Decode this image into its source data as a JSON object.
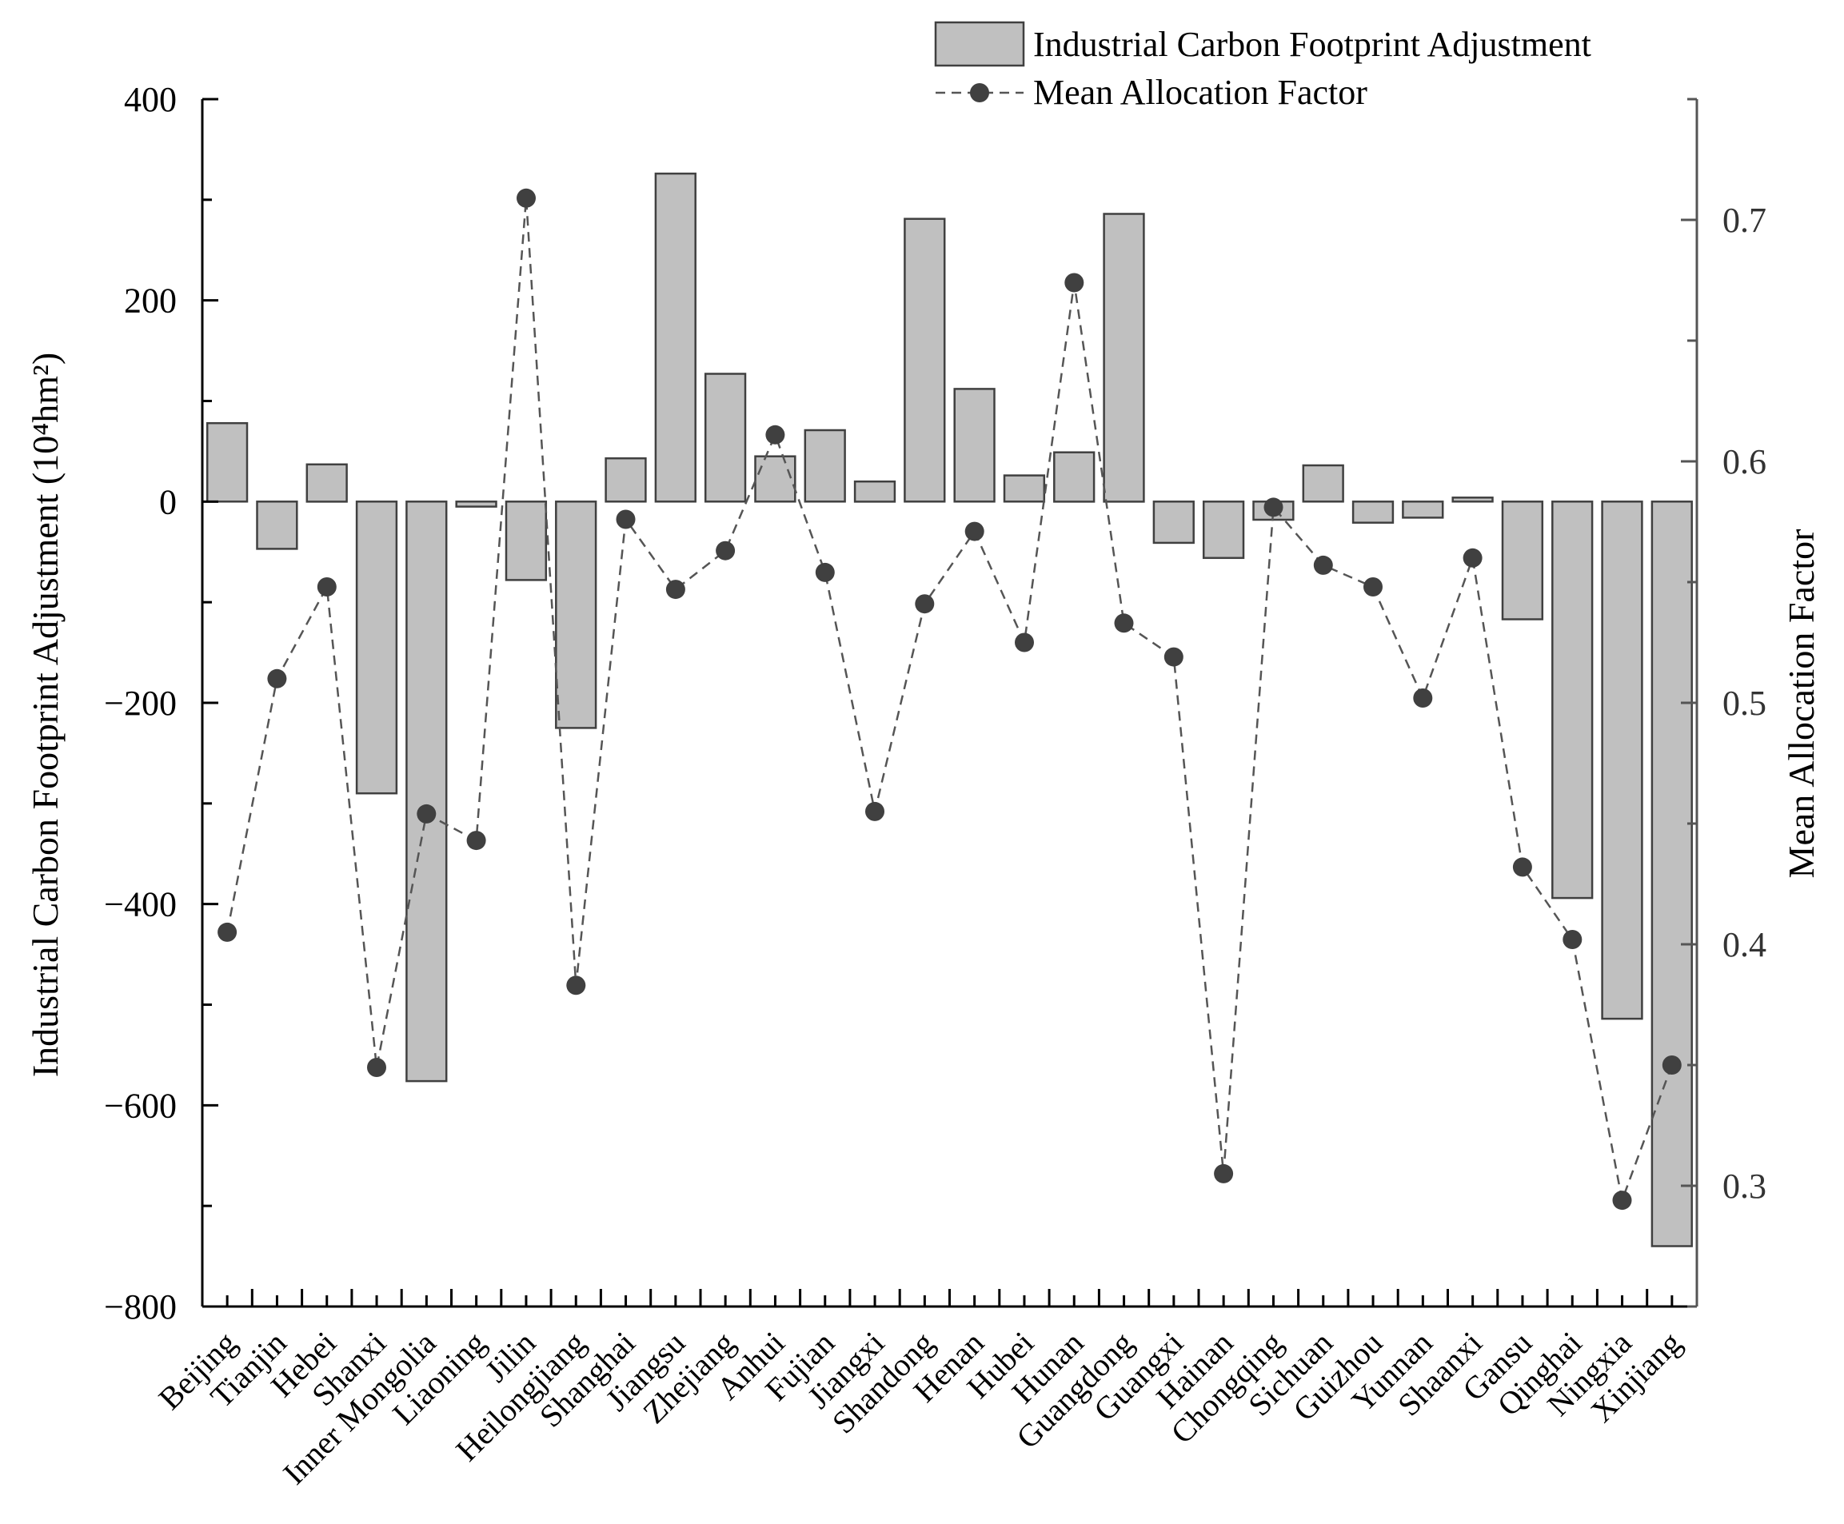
{
  "chart_data": {
    "type": "bar",
    "categories": [
      "Beijing",
      "Tianjin",
      "Hebei",
      "Shanxi",
      "Inner Mongolia",
      "Liaoning",
      "Jilin",
      "Heilongjiang",
      "Shanghai",
      "Jiangsu",
      "Zhejiang",
      "Anhui",
      "Fujian",
      "Jiangxi",
      "Shandong",
      "Henan",
      "Hubei",
      "Hunan",
      "Guangdong",
      "Guangxi",
      "Hainan",
      "Chongqing",
      "Sichuan",
      "Guizhou",
      "Yunnan",
      "Shaanxi",
      "Gansu",
      "Qinghai",
      "Ningxia",
      "Xinjiang"
    ],
    "series": [
      {
        "name": "Industrial Carbon Footprint Adjustment",
        "type": "bar",
        "axis": "left",
        "values": [
          78,
          -47,
          37,
          -290,
          -576,
          -5,
          -78,
          -225,
          43,
          326,
          127,
          45,
          71,
          20,
          281,
          112,
          26,
          49,
          286,
          -41,
          -56,
          -18,
          36,
          -21,
          -16,
          4,
          -117,
          -394,
          -514,
          -740
        ]
      },
      {
        "name": "Mean Allocation Factor",
        "type": "line",
        "axis": "right",
        "values": [
          0.405,
          0.51,
          0.548,
          0.349,
          0.454,
          0.443,
          0.709,
          0.383,
          0.576,
          0.547,
          0.563,
          0.611,
          0.554,
          0.455,
          0.541,
          0.571,
          0.525,
          0.674,
          0.533,
          0.519,
          0.305,
          0.581,
          0.557,
          0.548,
          0.502,
          0.56,
          0.432,
          0.402,
          0.294,
          0.35
        ]
      }
    ],
    "ylabel_left": "Industrial Carbon Footprint Adjustment (10⁴hm²)",
    "ylabel_right": "Mean Allocation Factor",
    "ylim_left": [
      -800,
      400
    ],
    "ylim_right": [
      0.25,
      0.75
    ],
    "yticks_left": [
      "400",
      "200",
      "0",
      "−200",
      "−400",
      "−600",
      "−800"
    ],
    "yticks_right": [
      "0.7",
      "0.6",
      "0.5",
      "0.4",
      "0.3"
    ],
    "legend_position": "top-right",
    "grid": false,
    "colors": {
      "bar_fill": "#c0c0c0",
      "bar_stroke": "#404040",
      "line": "#555555",
      "marker": "#404040"
    }
  }
}
